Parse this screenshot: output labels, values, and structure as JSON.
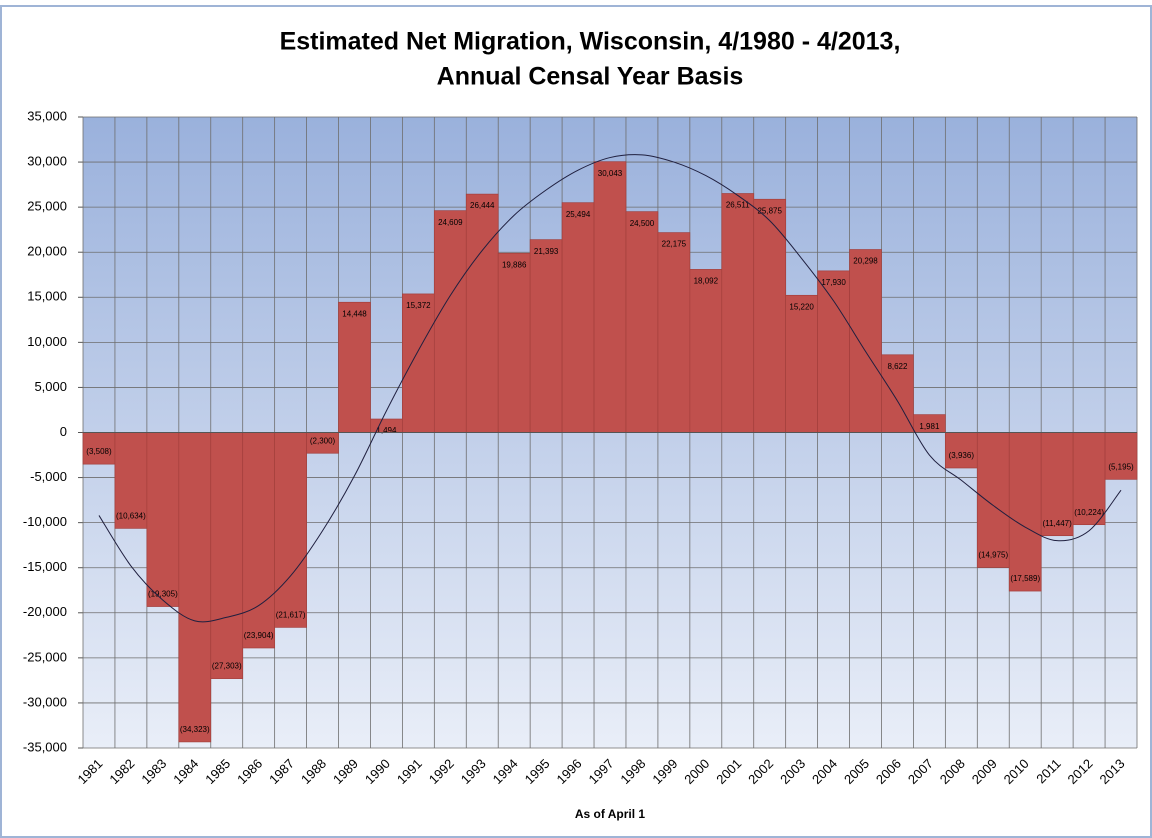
{
  "chart_data": {
    "type": "bar",
    "title": [
      "Estimated Net Migration, Wisconsin, 4/1980 - 4/2013,",
      "Annual Censal Year Basis"
    ],
    "x_label": "As of April 1",
    "categories": [
      "1981",
      "1982",
      "1983",
      "1984",
      "1985",
      "1986",
      "1987",
      "1988",
      "1989",
      "1990",
      "1991",
      "1992",
      "1993",
      "1994",
      "1995",
      "1996",
      "1997",
      "1998",
      "1999",
      "2000",
      "2001",
      "2002",
      "2003",
      "2004",
      "2005",
      "2006",
      "2007",
      "2008",
      "2009",
      "2010",
      "2011",
      "2012",
      "2013"
    ],
    "values": [
      -3508,
      -10634,
      -19305,
      -34323,
      -27303,
      -23904,
      -21617,
      -2300,
      14448,
      1494,
      15372,
      24609,
      26444,
      19886,
      21393,
      25494,
      30043,
      24500,
      22175,
      18092,
      26511,
      25875,
      15220,
      17930,
      20298,
      8622,
      1981,
      -3936,
      -14975,
      -17589,
      -11447,
      -10224,
      -5195
    ],
    "value_labels": [
      "(3,508)",
      "(10,634)",
      "(19,305)",
      "(34,323)",
      "(27,303)",
      "(23,904)",
      "(21,617)",
      "(2,300)",
      "14,448",
      "1,494",
      "15,372",
      "24,609",
      "26,444",
      "19,886",
      "21,393",
      "25,494",
      "30,043",
      "24,500",
      "22,175",
      "18,092",
      "26,511",
      "25,875",
      "15,220",
      "17,930",
      "20,298",
      "8,622",
      "1,981",
      "(3,936)",
      "(14,975)",
      "(17,589)",
      "(11,447)",
      "(10,224)",
      "(5,195)"
    ],
    "color": "#c0504d",
    "trend": {
      "color": "#1f1f3f",
      "values": [
        -9200,
        -14800,
        -18600,
        -20900,
        -20500,
        -19200,
        -15900,
        -10900,
        -4800,
        2400,
        9100,
        15200,
        20200,
        24100,
        26900,
        29100,
        30500,
        30800,
        30000,
        28500,
        26300,
        23500,
        19300,
        14600,
        9000,
        3500,
        -2500,
        -5300,
        -8100,
        -10500,
        -12000,
        -10900,
        -6400
      ]
    },
    "ylim": [
      -35000,
      35000
    ],
    "yticks": [
      {
        "value": -35000,
        "label": "-35,000"
      },
      {
        "value": -30000,
        "label": "-30,000"
      },
      {
        "value": -25000,
        "label": "-25,000"
      },
      {
        "value": -20000,
        "label": "-20,000"
      },
      {
        "value": -15000,
        "label": "-15,000"
      },
      {
        "value": -10000,
        "label": "-10,000"
      },
      {
        "value": -5000,
        "label": "-5,000"
      },
      0,
      {
        "value": 5000,
        "label": "5,000"
      },
      {
        "value": 10000,
        "label": "10,000"
      },
      {
        "value": 15000,
        "label": "15,000"
      },
      {
        "value": 20000,
        "label": "20,000"
      },
      {
        "value": 25000,
        "label": "25,000"
      },
      {
        "value": 30000,
        "label": "30,000"
      },
      {
        "value": 35000,
        "label": "35,000"
      }
    ],
    "grid": true
  }
}
